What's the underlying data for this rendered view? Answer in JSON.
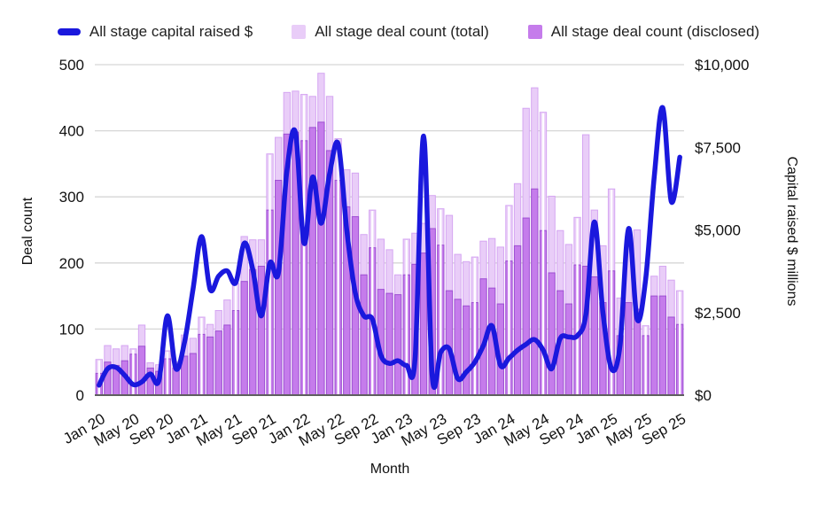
{
  "legend": {
    "items": [
      {
        "label": "All stage capital raised $",
        "type": "line",
        "color": "#1a18dd"
      },
      {
        "label": "All stage deal count (total)",
        "type": "bar",
        "color": "#e9cdf8",
        "stroke": "#d5a6f2"
      },
      {
        "label": "All stage deal count (disclosed)",
        "type": "bar",
        "color": "#c57ceb",
        "stroke": "#9d4fd2"
      }
    ]
  },
  "labels": {
    "left_axis": "Deal count",
    "right_axis": "Capital raised $ millions",
    "month_axis": "Month"
  },
  "chart_data": {
    "type": "combo-bar-line",
    "grid": true,
    "legend_position": "top",
    "x_label_every_n_months": 4,
    "months": [
      "Jan 20",
      "Feb 20",
      "Mar 20",
      "Apr 20",
      "May 20",
      "Jun 20",
      "Jul 20",
      "Aug 20",
      "Sep 20",
      "Oct 20",
      "Nov 20",
      "Dec 20",
      "Jan 21",
      "Feb 21",
      "Mar 21",
      "Apr 21",
      "May 21",
      "Jun 21",
      "Jul 21",
      "Aug 21",
      "Sep 21",
      "Oct 21",
      "Nov 21",
      "Dec 21",
      "Jan 22",
      "Feb 22",
      "Mar 22",
      "Apr 22",
      "May 22",
      "Jun 22",
      "Jul 22",
      "Aug 22",
      "Sep 22",
      "Oct 22",
      "Nov 22",
      "Dec 22",
      "Jan 23",
      "Feb 23",
      "Mar 23",
      "Apr 23",
      "May 23",
      "Jun 23",
      "Jul 23",
      "Aug 23",
      "Sep 23",
      "Oct 23",
      "Nov 23",
      "Dec 23",
      "Jan 24",
      "Feb 24",
      "Mar 24",
      "Apr 24",
      "May 24",
      "Jun 24",
      "Jul 24",
      "Aug 24",
      "Sep 24",
      "Oct 24",
      "Nov 24",
      "Dec 24",
      "Jan 25",
      "Feb 25",
      "Mar 25",
      "Apr 25",
      "May 25",
      "Jun 25",
      "Jul 25",
      "Aug 25",
      "Sep 25"
    ],
    "x_tick_labels": [
      "Jan 20",
      "May 20",
      "Sep 20",
      "Jan 21",
      "May 21",
      "Sep 21",
      "Jan 22",
      "May 22",
      "Sep 22",
      "Jan 23",
      "May 23",
      "Sep 23",
      "Jan 24",
      "May 24",
      "Sep 24",
      "Jan 25",
      "May 25",
      "Sep 25"
    ],
    "left_axis": {
      "title": "Deal count",
      "min": 0,
      "max": 500,
      "ticks": [
        0,
        100,
        200,
        300,
        400,
        500
      ]
    },
    "right_axis": {
      "title": "Capital raised $ millions",
      "min": 0,
      "max": 10000,
      "tick_labels": [
        "$0",
        "$2,500",
        "$5,000",
        "$7,500",
        "$10,000"
      ],
      "ticks": [
        0,
        2500,
        5000,
        7500,
        10000
      ]
    },
    "x_axis": {
      "title": "Month"
    },
    "series": [
      {
        "name": "All stage deal count (total)",
        "type": "bar",
        "axis": "left",
        "values": [
          54,
          75,
          70,
          75,
          70,
          106,
          49,
          46,
          67,
          50,
          91,
          86,
          118,
          107,
          128,
          144,
          169,
          240,
          235,
          235,
          365,
          390,
          458,
          460,
          455,
          452,
          487,
          452,
          388,
          341,
          336,
          243,
          280,
          236,
          220,
          182,
          236,
          245,
          260,
          302,
          282,
          272,
          213,
          202,
          209,
          233,
          237,
          224,
          287,
          320,
          434,
          465,
          428,
          301,
          249,
          228,
          269,
          394,
          280,
          226,
          312,
          147,
          240,
          250,
          105,
          180,
          195,
          174,
          158
        ]
      },
      {
        "name": "All stage deal count (disclosed)",
        "type": "bar",
        "axis": "left",
        "values": [
          33,
          50,
          45,
          52,
          62,
          74,
          41,
          36,
          55,
          41,
          59,
          63,
          92,
          88,
          97,
          106,
          128,
          172,
          190,
          195,
          280,
          325,
          395,
          398,
          385,
          405,
          413,
          370,
          325,
          285,
          270,
          182,
          223,
          160,
          154,
          152,
          182,
          198,
          215,
          252,
          227,
          158,
          145,
          135,
          140,
          176,
          162,
          138,
          203,
          226,
          268,
          312,
          249,
          185,
          158,
          138,
          197,
          195,
          179,
          140,
          188,
          90,
          140,
          130,
          90,
          150,
          150,
          118,
          107
        ]
      },
      {
        "name": "All stage capital raised $",
        "type": "line",
        "axis": "right",
        "values": [
          300,
          800,
          840,
          600,
          320,
          400,
          640,
          440,
          2400,
          800,
          1600,
          3200,
          4800,
          3200,
          3600,
          3760,
          3400,
          4600,
          3800,
          2400,
          4000,
          3700,
          6800,
          7940,
          4600,
          6600,
          5200,
          6700,
          7600,
          5000,
          3100,
          2400,
          2300,
          1200,
          960,
          1040,
          900,
          1100,
          7840,
          600,
          1300,
          1400,
          500,
          700,
          1000,
          1500,
          2100,
          900,
          1120,
          1360,
          1540,
          1680,
          1360,
          800,
          1720,
          1760,
          1800,
          2440,
          5240,
          2500,
          800,
          1500,
          5040,
          2300,
          3500,
          6600,
          8700,
          5860,
          7200
        ]
      }
    ]
  }
}
